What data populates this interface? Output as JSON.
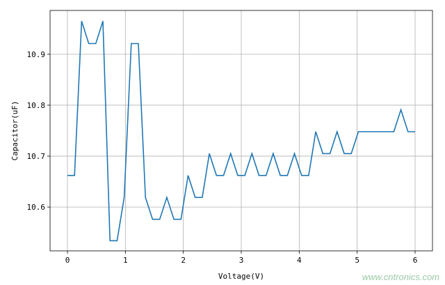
{
  "chart_data": {
    "type": "line",
    "title": "",
    "xlabel": "Voltage(V)",
    "ylabel": "Capacitor(uF)",
    "xlim": [
      -0.3,
      6.3
    ],
    "ylim": [
      10.514,
      10.986
    ],
    "xticks": [
      "0",
      "1",
      "2",
      "3",
      "4",
      "5",
      "6"
    ],
    "yticks": [
      "10.6",
      "10.7",
      "10.8",
      "10.9"
    ],
    "grid": true,
    "line_color": "#1f77b4",
    "x_start": 0,
    "x_end": 6,
    "values": [
      10.662,
      10.662,
      10.965,
      10.921,
      10.921,
      10.965,
      10.534,
      10.534,
      10.619,
      10.921,
      10.921,
      10.619,
      10.576,
      10.576,
      10.619,
      10.576,
      10.576,
      10.662,
      10.619,
      10.619,
      10.705,
      10.662,
      10.662,
      10.705,
      10.662,
      10.662,
      10.705,
      10.662,
      10.662,
      10.705,
      10.662,
      10.662,
      10.705,
      10.662,
      10.662,
      10.748,
      10.705,
      10.705,
      10.748,
      10.705,
      10.705,
      10.748,
      10.748,
      10.748,
      10.748,
      10.748,
      10.748,
      10.791,
      10.748,
      10.748
    ]
  },
  "watermark": "www.cntronics.com"
}
